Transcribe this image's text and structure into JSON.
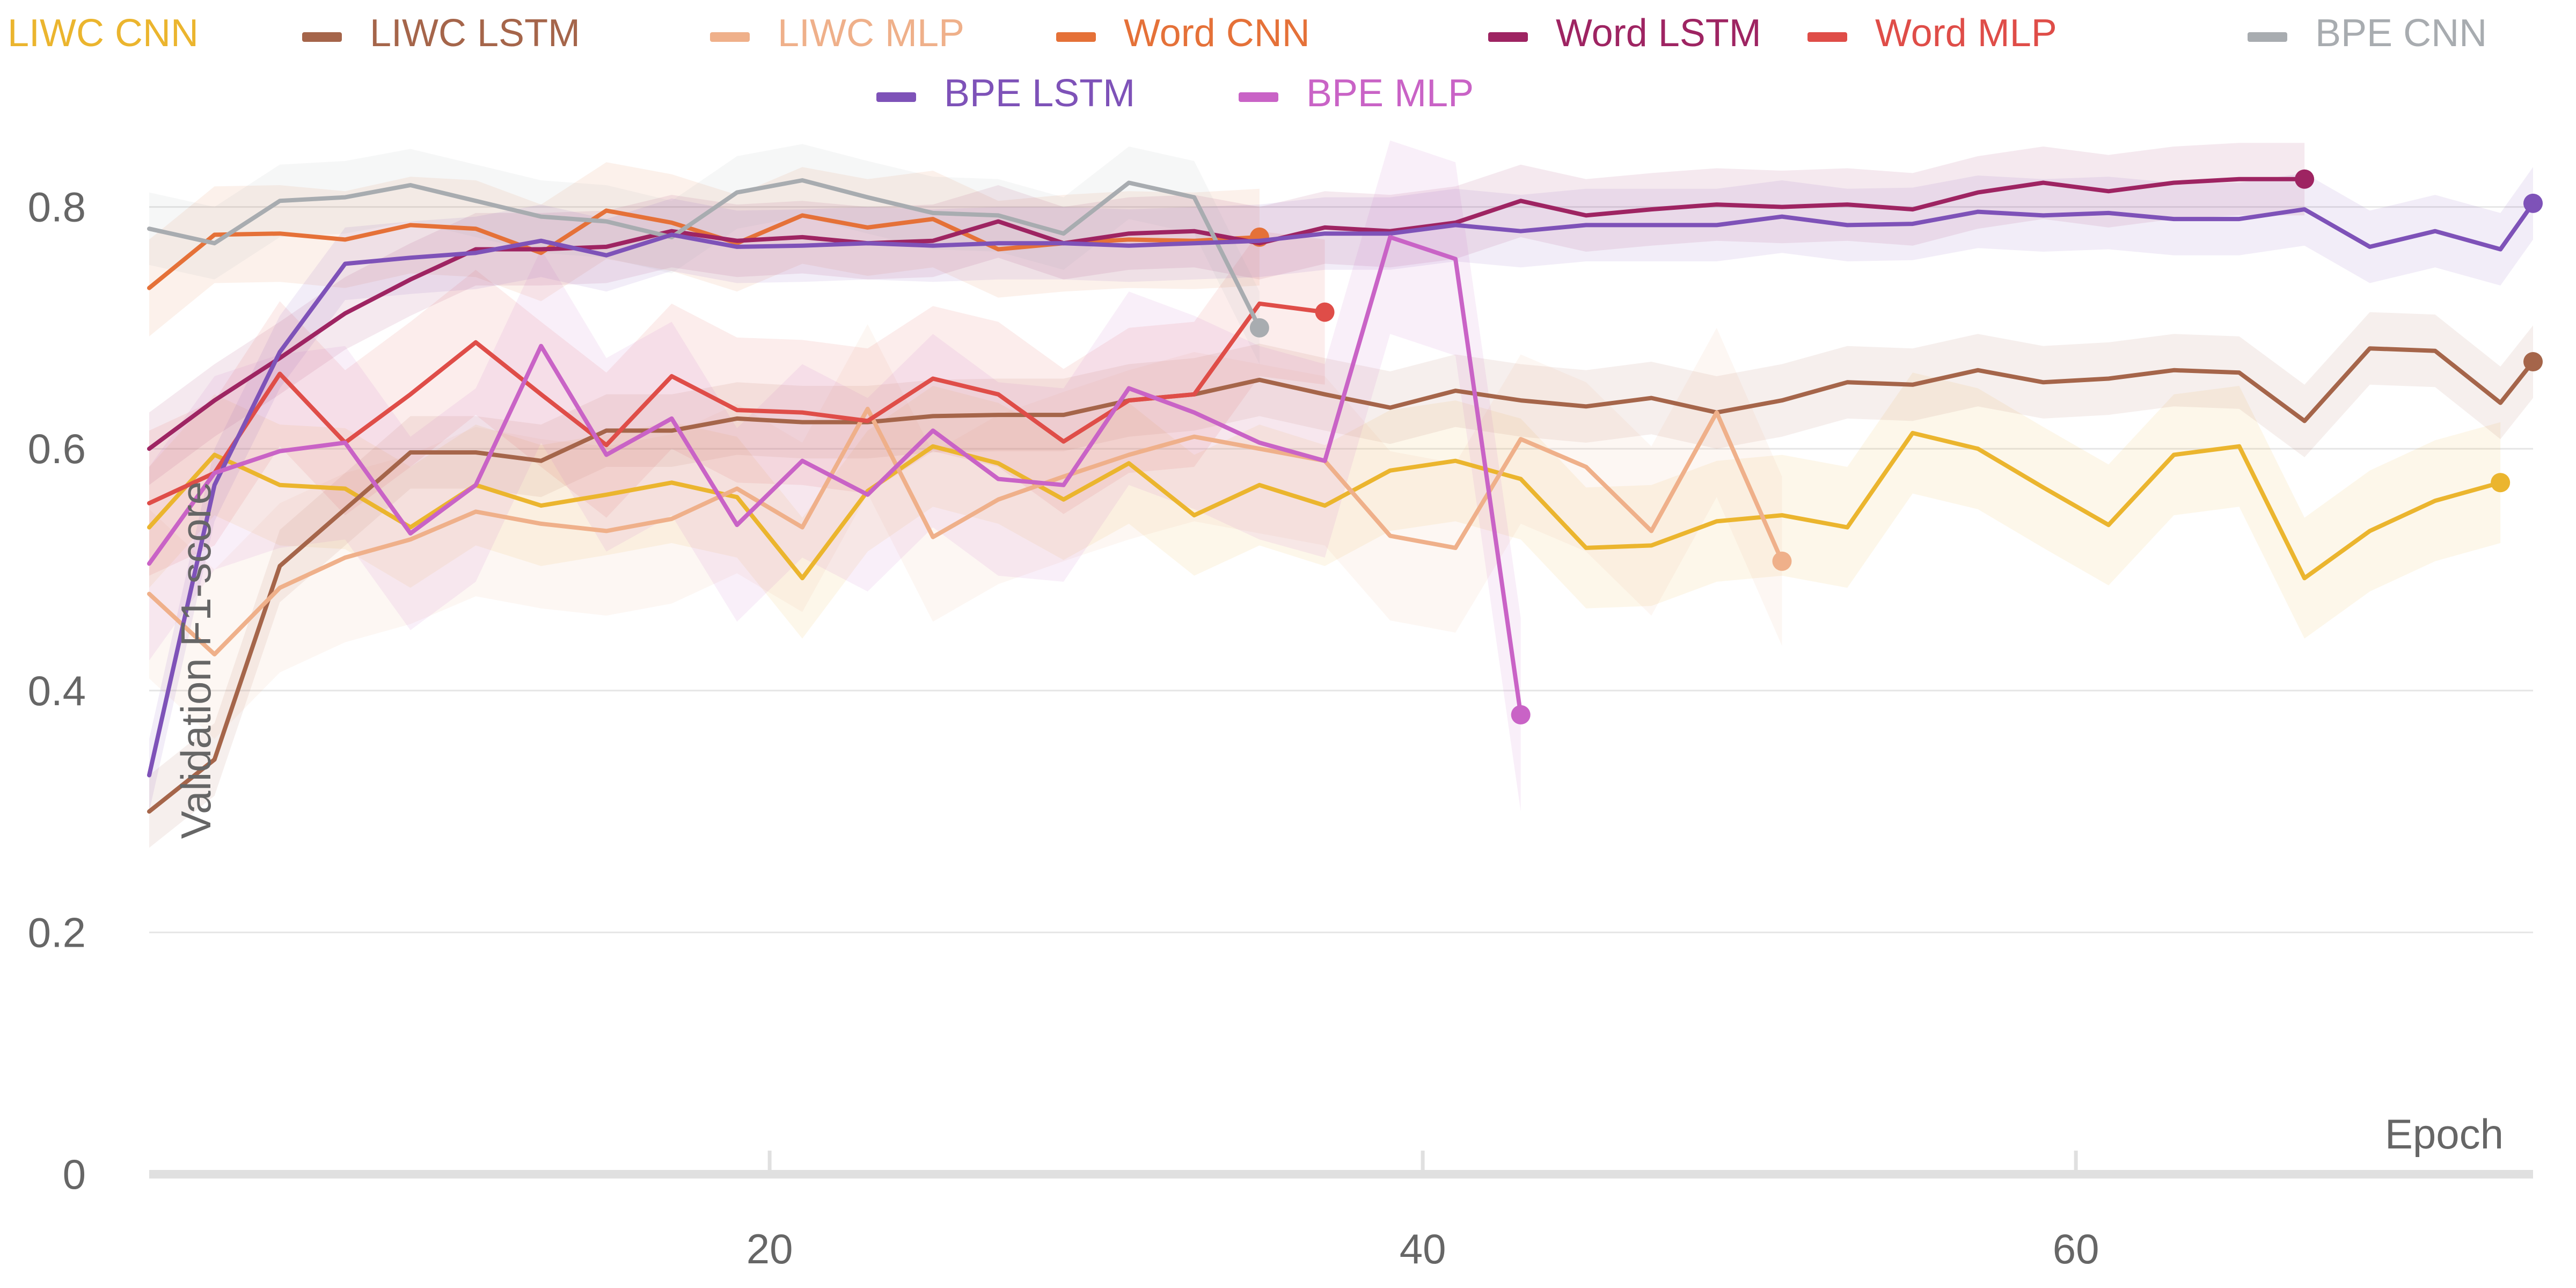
{
  "chart_data": {
    "type": "line",
    "xlabel": "Epoch",
    "ylabel": "Validation F1-score",
    "xlim": [
      1,
      74
    ],
    "ylim": [
      0,
      0.85
    ],
    "x_ticks": [
      20,
      40,
      60
    ],
    "y_ticks": [
      0,
      0.2,
      0.4,
      0.6,
      0.8
    ],
    "y_tick_labels": [
      "0",
      "0.2",
      "0.4",
      "0.6",
      "0.8"
    ],
    "x_tick_labels": [
      "20",
      "40",
      "60"
    ],
    "grid": "horizontal",
    "legend_position": "top",
    "series": [
      {
        "name": "LIWC CNN",
        "color": "#EBB52E",
        "x": [
          1,
          3,
          5,
          7,
          9,
          11,
          13,
          15,
          17,
          19,
          21,
          23,
          25,
          27,
          29,
          31,
          33,
          35,
          37,
          39,
          41,
          43,
          45,
          47,
          49,
          51,
          53,
          55,
          57,
          59,
          61,
          63,
          65,
          67,
          69,
          71,
          73
        ],
        "y": [
          0.535,
          0.595,
          0.57,
          0.567,
          0.535,
          0.57,
          0.553,
          0.562,
          0.572,
          0.56,
          0.493,
          0.565,
          0.602,
          0.588,
          0.558,
          0.588,
          0.545,
          0.57,
          0.553,
          0.582,
          0.59,
          0.575,
          0.518,
          0.52,
          0.54,
          0.545,
          0.535,
          0.613,
          0.6,
          0.568,
          0.537,
          0.595,
          0.602,
          0.493,
          0.532,
          0.557,
          0.572
        ],
        "band": 0.05
      },
      {
        "name": "LIWC LSTM",
        "color": "#A5654A",
        "x": [
          1,
          3,
          5,
          7,
          9,
          11,
          13,
          15,
          17,
          19,
          21,
          23,
          25,
          27,
          29,
          31,
          33,
          35,
          37,
          39,
          41,
          43,
          45,
          47,
          49,
          51,
          53,
          55,
          57,
          59,
          61,
          63,
          65,
          67,
          69,
          71,
          73,
          74
        ],
        "y": [
          0.3,
          0.343,
          0.503,
          0.55,
          0.597,
          0.597,
          0.59,
          0.615,
          0.615,
          0.625,
          0.622,
          0.622,
          0.627,
          0.628,
          0.628,
          0.64,
          0.645,
          0.657,
          0.645,
          0.634,
          0.648,
          0.64,
          0.635,
          0.642,
          0.63,
          0.64,
          0.655,
          0.653,
          0.665,
          0.655,
          0.658,
          0.665,
          0.663,
          0.623,
          0.683,
          0.681,
          0.638,
          0.672
        ],
        "band": 0.03
      },
      {
        "name": "LIWC MLP",
        "color": "#EFB08A",
        "x": [
          1,
          3,
          5,
          7,
          9,
          11,
          13,
          15,
          17,
          19,
          21,
          23,
          25,
          27,
          29,
          31,
          33,
          35,
          37,
          39,
          41,
          43,
          45,
          47,
          49,
          51
        ],
        "y": [
          0.48,
          0.43,
          0.485,
          0.51,
          0.525,
          0.548,
          0.538,
          0.532,
          0.542,
          0.567,
          0.535,
          0.633,
          0.527,
          0.558,
          0.577,
          0.595,
          0.61,
          0.6,
          0.59,
          0.528,
          0.518,
          0.608,
          0.585,
          0.532,
          0.63,
          0.507
        ],
        "band": 0.07
      },
      {
        "name": "Word CNN",
        "color": "#E57138",
        "x": [
          1,
          3,
          5,
          7,
          9,
          11,
          13,
          15,
          17,
          19,
          21,
          23,
          25,
          27,
          29,
          31,
          33,
          35
        ],
        "y": [
          0.733,
          0.777,
          0.778,
          0.773,
          0.785,
          0.782,
          0.762,
          0.797,
          0.787,
          0.77,
          0.793,
          0.783,
          0.79,
          0.765,
          0.77,
          0.773,
          0.772,
          0.775
        ],
        "band": 0.04
      },
      {
        "name": "Word LSTM",
        "color": "#9E2462",
        "x": [
          1,
          3,
          5,
          7,
          9,
          11,
          13,
          15,
          17,
          19,
          21,
          23,
          25,
          27,
          29,
          31,
          33,
          35,
          37,
          39,
          41,
          43,
          45,
          47,
          49,
          51,
          53,
          55,
          57,
          59,
          61,
          63,
          65,
          67
        ],
        "y": [
          0.6,
          0.64,
          0.675,
          0.712,
          0.74,
          0.765,
          0.765,
          0.767,
          0.78,
          0.772,
          0.775,
          0.77,
          0.772,
          0.788,
          0.77,
          0.778,
          0.78,
          0.77,
          0.783,
          0.78,
          0.787,
          0.805,
          0.793,
          0.798,
          0.802,
          0.8,
          0.802,
          0.798,
          0.812,
          0.82,
          0.813,
          0.82,
          0.823,
          0.823
        ],
        "band": 0.03
      },
      {
        "name": "Word MLP",
        "color": "#DF4D48",
        "x": [
          1,
          3,
          5,
          7,
          9,
          11,
          13,
          15,
          17,
          19,
          21,
          23,
          25,
          27,
          29,
          31,
          33,
          35,
          37
        ],
        "y": [
          0.555,
          0.58,
          0.662,
          0.605,
          0.645,
          0.688,
          0.645,
          0.603,
          0.66,
          0.632,
          0.63,
          0.623,
          0.658,
          0.645,
          0.606,
          0.64,
          0.645,
          0.72,
          0.713
        ],
        "band": 0.06
      },
      {
        "name": "BPE CNN",
        "color": "#A8ACB0",
        "x": [
          1,
          3,
          5,
          7,
          9,
          11,
          13,
          15,
          17,
          19,
          21,
          23,
          25,
          27,
          29,
          31,
          33,
          35
        ],
        "y": [
          0.782,
          0.77,
          0.805,
          0.808,
          0.818,
          0.805,
          0.792,
          0.788,
          0.775,
          0.812,
          0.822,
          0.808,
          0.795,
          0.793,
          0.778,
          0.82,
          0.808,
          0.7
        ],
        "band": 0.03
      },
      {
        "name": "BPE LSTM",
        "color": "#7E52B8",
        "x": [
          1,
          3,
          5,
          7,
          9,
          11,
          13,
          15,
          17,
          19,
          21,
          23,
          25,
          27,
          29,
          31,
          33,
          35,
          37,
          39,
          41,
          43,
          45,
          47,
          49,
          51,
          53,
          55,
          57,
          59,
          61,
          63,
          65,
          67,
          69,
          71,
          73,
          74
        ],
        "y": [
          0.33,
          0.57,
          0.68,
          0.753,
          0.758,
          0.762,
          0.772,
          0.76,
          0.777,
          0.767,
          0.768,
          0.77,
          0.768,
          0.77,
          0.77,
          0.768,
          0.77,
          0.772,
          0.778,
          0.778,
          0.785,
          0.78,
          0.785,
          0.785,
          0.785,
          0.792,
          0.785,
          0.786,
          0.796,
          0.793,
          0.795,
          0.79,
          0.79,
          0.798,
          0.767,
          0.78,
          0.765,
          0.803
        ],
        "band": 0.03
      },
      {
        "name": "BPE MLP",
        "color": "#C963C6",
        "x": [
          1,
          3,
          5,
          7,
          9,
          11,
          13,
          15,
          17,
          19,
          21,
          23,
          25,
          27,
          29,
          31,
          33,
          35,
          37,
          39,
          41,
          43
        ],
        "y": [
          0.505,
          0.58,
          0.598,
          0.605,
          0.53,
          0.57,
          0.685,
          0.595,
          0.625,
          0.537,
          0.59,
          0.562,
          0.615,
          0.575,
          0.57,
          0.65,
          0.63,
          0.605,
          0.59,
          0.775,
          0.757,
          0.38
        ],
        "band": 0.08
      }
    ]
  }
}
